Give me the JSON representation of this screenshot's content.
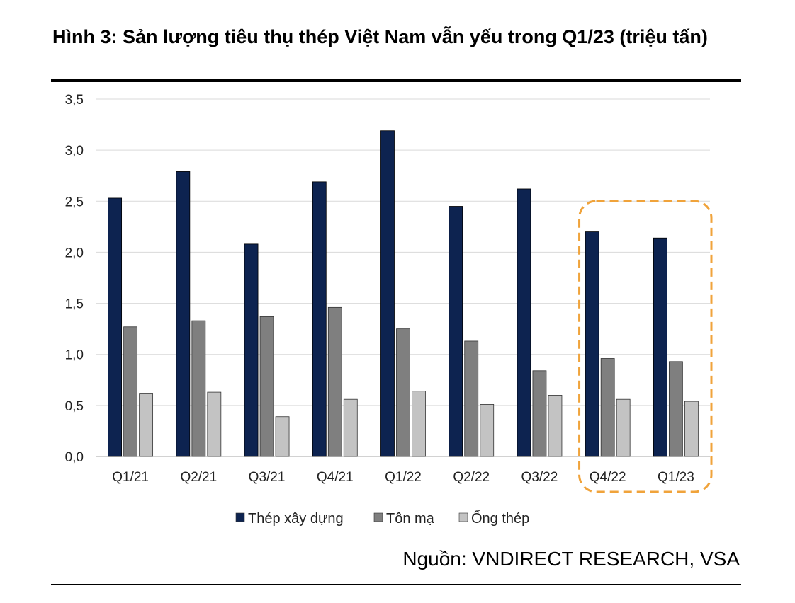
{
  "title": "Hình 3: Sản lượng tiêu thụ thép Việt Nam vẫn yếu trong Q1/23 (triệu tấn)",
  "source": "Nguồn: VNDIRECT RESEARCH, VSA",
  "colors": {
    "thep_xay_dung": "#0d2350",
    "ton_ma": "#7f7f7f",
    "ong_thep": "#c3c3c3",
    "highlight": "#f0a33b",
    "grid": "#d9d9d9"
  },
  "chart_data": {
    "type": "bar",
    "title": "Hình 3: Sản lượng tiêu thụ thép Việt Nam vẫn yếu trong Q1/23 (triệu tấn)",
    "xlabel": "",
    "ylabel": "",
    "ylim": [
      0,
      3.5
    ],
    "yticks": [
      "0,0",
      "0,5",
      "1,0",
      "1,5",
      "2,0",
      "2,5",
      "3,0",
      "3,5"
    ],
    "categories": [
      "Q1/21",
      "Q2/21",
      "Q3/21",
      "Q4/21",
      "Q1/22",
      "Q2/22",
      "Q3/22",
      "Q4/22",
      "Q1/23"
    ],
    "series": [
      {
        "name": "Thép xây dựng",
        "values": [
          2.53,
          2.79,
          2.08,
          2.69,
          3.19,
          2.45,
          2.62,
          2.2,
          2.14
        ]
      },
      {
        "name": "Tôn mạ",
        "values": [
          1.27,
          1.33,
          1.37,
          1.46,
          1.25,
          1.13,
          0.84,
          0.96,
          0.93
        ]
      },
      {
        "name": "Ống thép",
        "values": [
          0.62,
          0.63,
          0.39,
          0.56,
          0.64,
          0.51,
          0.6,
          0.56,
          0.54
        ]
      }
    ],
    "highlight_categories": [
      "Q4/22",
      "Q1/23"
    ],
    "legend_position": "bottom"
  }
}
